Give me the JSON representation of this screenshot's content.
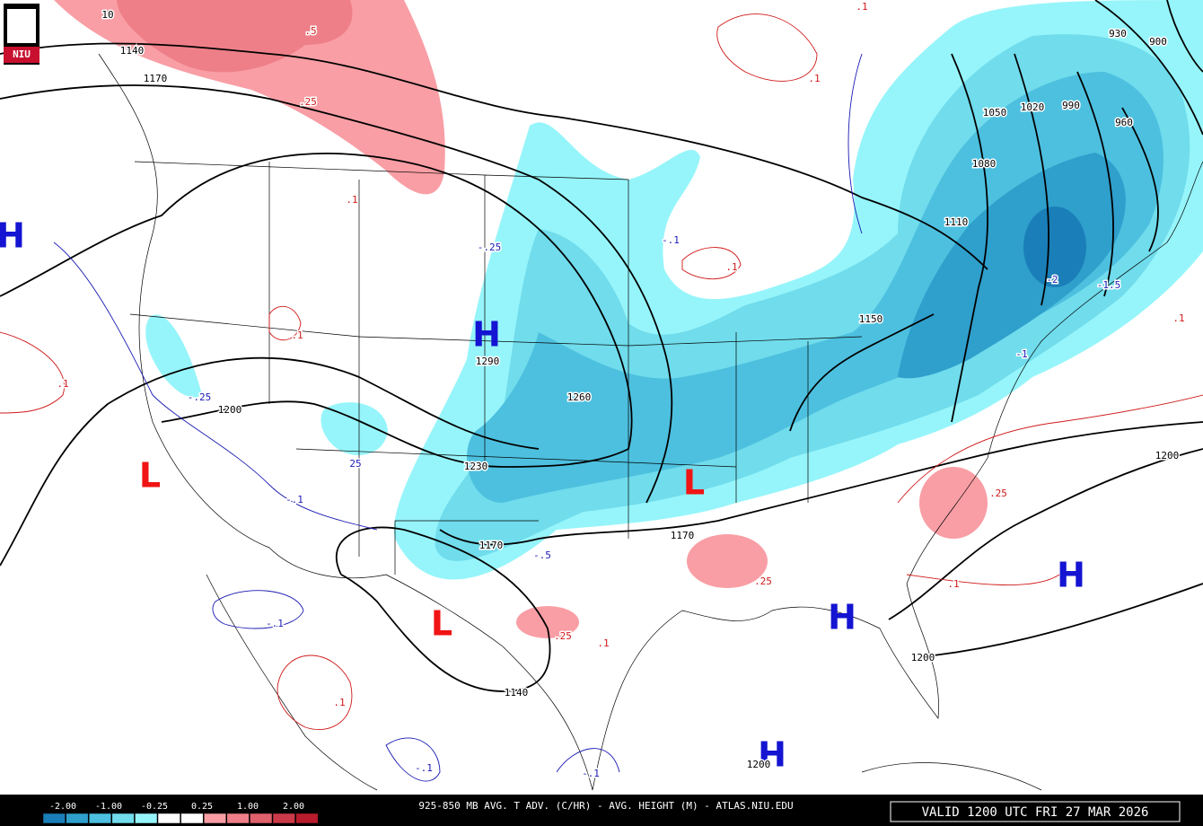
{
  "logo": "NIU",
  "highs": [
    "H",
    "H",
    "H",
    "H",
    "H"
  ],
  "lows": [
    "L",
    "L",
    "L"
  ],
  "height_labels": [
    "10",
    "1140",
    "1170",
    "1290",
    "1260",
    "1200",
    "1230",
    "1170",
    "1170",
    "1140",
    "1050",
    "1020",
    "990",
    "960",
    "930",
    "900",
    "1080",
    "1110",
    "1150",
    "1200",
    "1200",
    "1200"
  ],
  "warm_advection_labels": [
    ".5",
    ".25",
    ".1",
    ".1",
    ".1",
    ".1",
    ".1",
    ".1",
    ".25",
    ".25",
    ".1",
    ".1",
    ".25",
    ".1",
    ".1"
  ],
  "cold_advection_labels": [
    "-.25",
    "-.1",
    "-.25",
    "25",
    "-.1",
    "-.5",
    "-.1",
    "-.1",
    "-.1",
    "-1",
    "-1.5",
    "-2"
  ],
  "legend": {
    "labels": [
      "-2.00",
      "-1.00",
      "-0.25",
      "0.25",
      "1.00",
      "2.00"
    ],
    "colors": [
      "#1a7fb8",
      "#2f9fcc",
      "#4dc0df",
      "#70dcec",
      "#96f5fa",
      "#ffffff",
      "#ffffff",
      "#f99ea5",
      "#ee7f88",
      "#e0606c",
      "#cc3a4a",
      "#b81c2c"
    ]
  },
  "title": "925-850 MB AVG. T ADV. (C/HR) - AVG. HEIGHT (M) - ATLAS.NIU.EDU",
  "valid_time": "VALID 1200 UTC FRI 27 MAR 2026"
}
